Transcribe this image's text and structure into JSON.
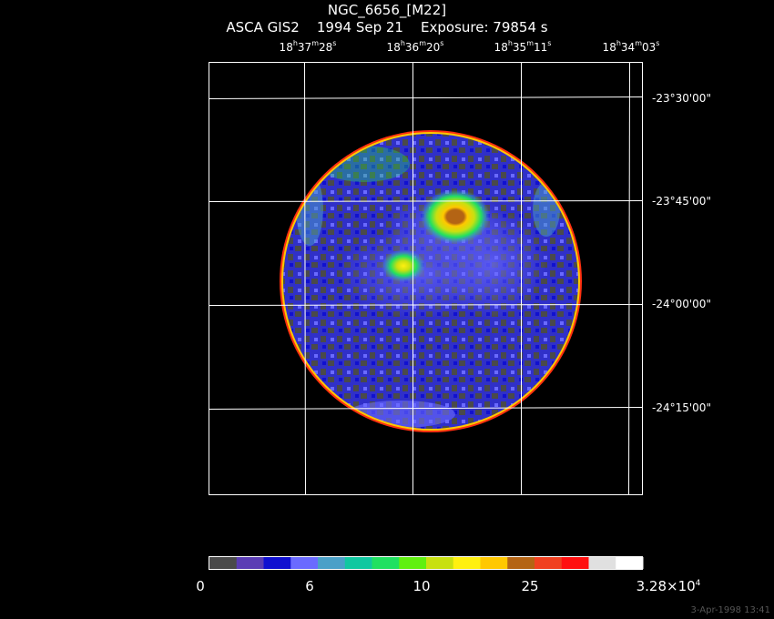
{
  "header": {
    "object": "NGC_6656_[M22]",
    "instrument": "ASCA GIS2",
    "date": "1994 Sep 21",
    "exposure": "Exposure: 79854 s"
  },
  "ra_ticks": [
    {
      "h": "18",
      "m": "37",
      "s": "28"
    },
    {
      "h": "18",
      "m": "36",
      "s": "20"
    },
    {
      "h": "18",
      "m": "35",
      "s": "11"
    },
    {
      "h": "18",
      "m": "34",
      "s": "03"
    }
  ],
  "dec_ticks": [
    "-23°30'00\"",
    "-23°45'00\"",
    "-24°00'00\"",
    "-24°15'00\""
  ],
  "colorbar": {
    "colors": [
      "#4a4a4a",
      "#5a3cb4",
      "#1010d0",
      "#6a6aff",
      "#4aa0c8",
      "#10c8a0",
      "#20e060",
      "#60f010",
      "#c8e010",
      "#fff010",
      "#ffc800",
      "#b46414",
      "#f04020",
      "#ff1010",
      "#e0e0e0",
      "#ffffff"
    ],
    "labels": [
      "0",
      "6",
      "10",
      "25"
    ],
    "max_label_base": "3.28×10",
    "max_label_exp": "4"
  },
  "footer": "3-Apr-1998 13:41"
}
